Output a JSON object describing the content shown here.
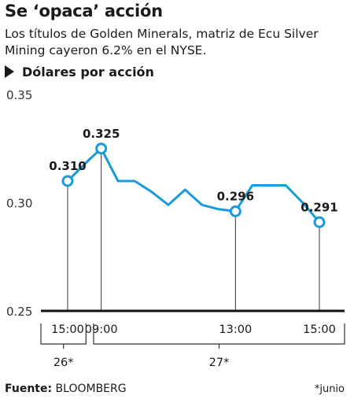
{
  "header": {
    "title": "Se ‘opaca’ acción",
    "subtitle": "Los títulos de Golden Minerals, matriz de Ecu Silver Mining cayeron 6.2% en el NYSE.",
    "unit_label": "Dólares por acción",
    "unit_icon": "label-arrow-icon"
  },
  "footer": {
    "source_label": "Fuente:",
    "source_value": "BLOOMBERG",
    "footnote": "*junio"
  },
  "colors": {
    "line": "#1a9ad9",
    "text": "#1a1a1a"
  },
  "chart_data": {
    "type": "line",
    "ylim": [
      0.25,
      0.35
    ],
    "yticks": [
      {
        "value": 0.35,
        "label": "0.35"
      },
      {
        "value": 0.3,
        "label": "0.30"
      },
      {
        "value": 0.25,
        "label": "0.25"
      }
    ],
    "xlim": [
      0,
      16
    ],
    "x": [
      1,
      2.3,
      3,
      4,
      5,
      6,
      7,
      8,
      9,
      10,
      11,
      12,
      13
    ],
    "y": [
      0.31,
      0.32,
      0.325,
      0.31,
      0.31,
      0.305,
      0.299,
      0.306,
      0.299,
      0.297,
      0.296,
      0.308,
      0.308
    ],
    "xy_extra": [
      [
        14,
        0.308
      ],
      [
        15,
        0.3
      ],
      [
        16,
        0.291
      ]
    ],
    "markers": [
      {
        "x": 1,
        "y": 0.31,
        "label": "0.310"
      },
      {
        "x": 3,
        "y": 0.325,
        "label": "0.325"
      },
      {
        "x": 11,
        "y": 0.296,
        "label": "0.296"
      },
      {
        "x": 16,
        "y": 0.291,
        "label": "0.291"
      }
    ],
    "xticks": [
      {
        "x": 1,
        "label": "15:00"
      },
      {
        "x": 3,
        "label": "09:00"
      },
      {
        "x": 11,
        "label": "13:00"
      },
      {
        "x": 16,
        "label": "15:00"
      }
    ],
    "day_groups": [
      {
        "label": "26*",
        "from": 0,
        "to": 2
      },
      {
        "label": "27*",
        "from": 2.5,
        "to": 17.3
      }
    ]
  }
}
